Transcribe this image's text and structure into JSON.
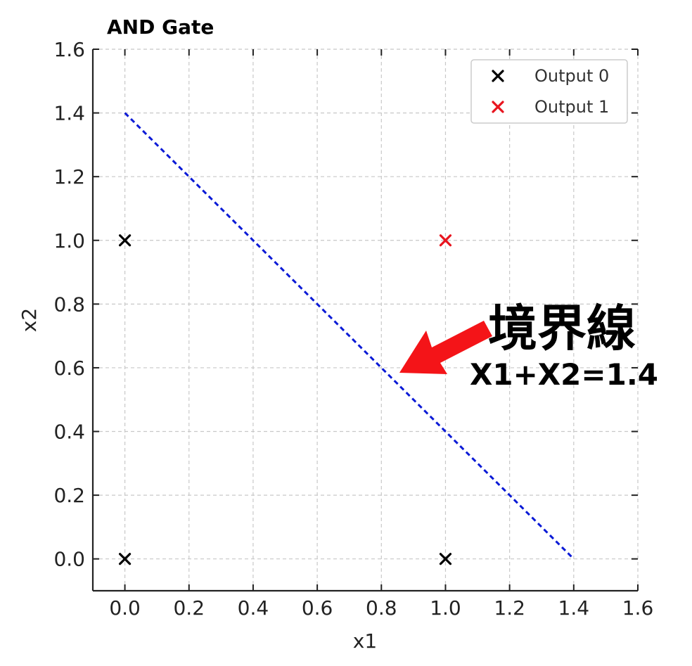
{
  "chart_data": {
    "type": "scatter",
    "title": "AND Gate",
    "xlabel": "x1",
    "ylabel": "x2",
    "xlim": [
      -0.1,
      1.6
    ],
    "ylim": [
      -0.1,
      1.6
    ],
    "x_ticks": [
      "0.0",
      "0.2",
      "0.4",
      "0.6",
      "0.8",
      "1.0",
      "1.2",
      "1.4",
      "1.6"
    ],
    "y_ticks": [
      "0.0",
      "0.2",
      "0.4",
      "0.6",
      "0.8",
      "1.0",
      "1.2",
      "1.4",
      "1.6"
    ],
    "grid": true,
    "legend_position": "top-right",
    "series": [
      {
        "name": "Output 0",
        "color": "#000000",
        "marker": "x",
        "points": [
          [
            0,
            0
          ],
          [
            0,
            1
          ],
          [
            1,
            0
          ]
        ]
      },
      {
        "name": "Output 1",
        "color": "#e8141e",
        "marker": "x",
        "points": [
          [
            1,
            1
          ]
        ]
      }
    ],
    "decision_boundary": {
      "color": "#0a1ad6",
      "style": "dashed",
      "points": [
        [
          0,
          1.4
        ],
        [
          1.4,
          0
        ]
      ]
    },
    "annotation": {
      "label": "境界線",
      "equation": "X1+X2=1.4",
      "arrow_color": "#f41418",
      "arrow_target": [
        0.86,
        0.58
      ]
    }
  }
}
